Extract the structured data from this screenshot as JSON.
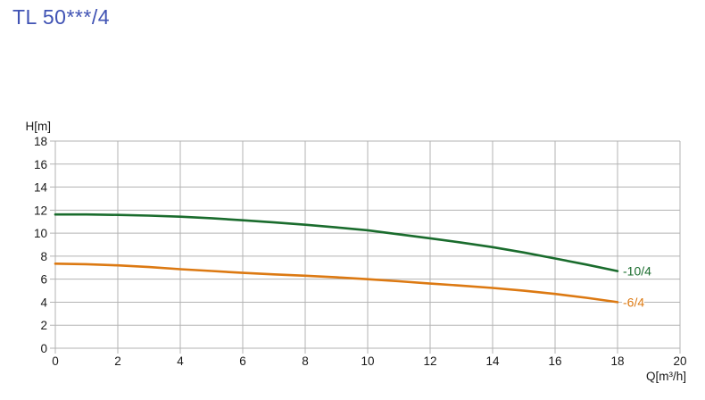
{
  "header": {
    "title": "TL 50***/4"
  },
  "colors": {
    "title": "#4053b4",
    "grid": "#b3b3b3",
    "tick_text": "#1a1a1a",
    "series_green": "#1a6c2d",
    "series_orange": "#dc7912"
  },
  "chart_data": {
    "type": "line",
    "title": "TL 50***/4",
    "xlabel": "Q[m³/h]",
    "ylabel": "H[m]",
    "xlim": [
      0,
      20
    ],
    "ylim": [
      0,
      18
    ],
    "x_ticks": [
      0,
      2,
      4,
      6,
      8,
      10,
      12,
      14,
      16,
      18,
      20
    ],
    "y_ticks": [
      0,
      2,
      4,
      6,
      8,
      10,
      12,
      14,
      16,
      18
    ],
    "grid": true,
    "legend_position": "end-of-curve",
    "series": [
      {
        "name": "-10/4",
        "color": "#1a6c2d",
        "points": [
          [
            0,
            11.62
          ],
          [
            1,
            11.62
          ],
          [
            2,
            11.58
          ],
          [
            3,
            11.52
          ],
          [
            4,
            11.43
          ],
          [
            5,
            11.3
          ],
          [
            6,
            11.12
          ],
          [
            7,
            10.93
          ],
          [
            8,
            10.73
          ],
          [
            9,
            10.5
          ],
          [
            10,
            10.25
          ],
          [
            11,
            9.9
          ],
          [
            12,
            9.55
          ],
          [
            13,
            9.18
          ],
          [
            14,
            8.78
          ],
          [
            15,
            8.32
          ],
          [
            16,
            7.8
          ],
          [
            17,
            7.27
          ],
          [
            18,
            6.7
          ]
        ]
      },
      {
        "name": "-6/4",
        "color": "#dc7912",
        "points": [
          [
            0,
            7.35
          ],
          [
            1,
            7.3
          ],
          [
            2,
            7.2
          ],
          [
            3,
            7.05
          ],
          [
            4,
            6.87
          ],
          [
            5,
            6.71
          ],
          [
            6,
            6.55
          ],
          [
            7,
            6.42
          ],
          [
            8,
            6.3
          ],
          [
            9,
            6.16
          ],
          [
            10,
            6.0
          ],
          [
            11,
            5.82
          ],
          [
            12,
            5.62
          ],
          [
            13,
            5.44
          ],
          [
            14,
            5.24
          ],
          [
            15,
            5.0
          ],
          [
            16,
            4.72
          ],
          [
            17,
            4.38
          ],
          [
            18,
            4.0
          ]
        ]
      }
    ]
  }
}
